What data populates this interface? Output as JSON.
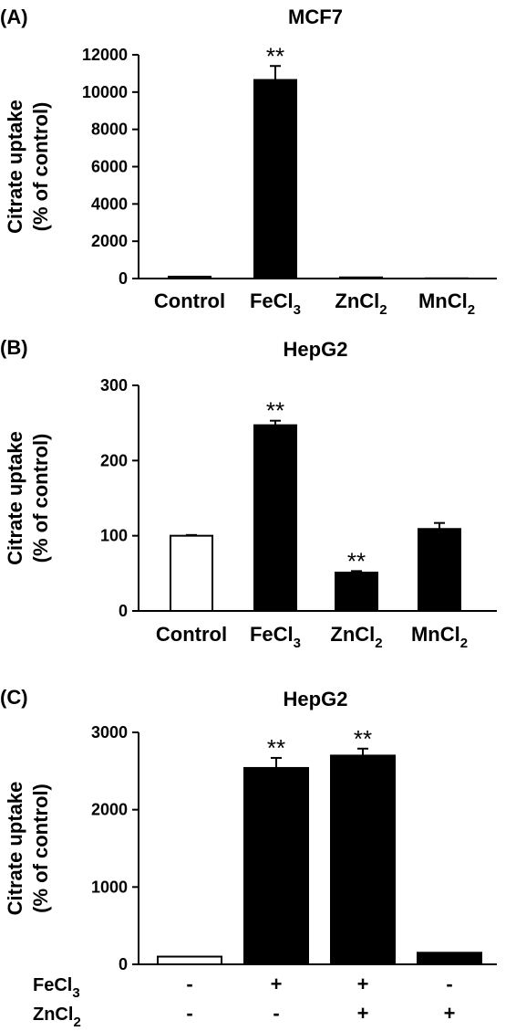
{
  "chart_data": [
    {
      "type": "bar",
      "panel_label": "(A)",
      "title": "MCF7",
      "ylabel": [
        "Citrate uptake",
        "(% of control)"
      ],
      "ylim": [
        0,
        12000
      ],
      "yticks": [
        0,
        2000,
        4000,
        6000,
        8000,
        10000,
        12000
      ],
      "categories": [
        {
          "base": "Control",
          "sub": ""
        },
        {
          "base": "FeCl",
          "sub": "3"
        },
        {
          "base": "ZnCl",
          "sub": "2"
        },
        {
          "base": "MnCl",
          "sub": "2"
        }
      ],
      "values": [
        100,
        10650,
        60,
        10
      ],
      "errors": [
        0,
        750,
        0,
        0
      ],
      "fills": [
        "#ffffff",
        "#000000",
        "#000000",
        "#000000"
      ],
      "significance": [
        "",
        "**",
        "",
        ""
      ],
      "grid": false
    },
    {
      "type": "bar",
      "panel_label": "(B)",
      "title": "HepG2",
      "ylabel": [
        "Citrate uptake",
        "(% of control)"
      ],
      "ylim": [
        0,
        300
      ],
      "yticks": [
        0,
        100,
        200,
        300
      ],
      "categories": [
        {
          "base": "Control",
          "sub": ""
        },
        {
          "base": "FeCl",
          "sub": "3"
        },
        {
          "base": "ZnCl",
          "sub": "2"
        },
        {
          "base": "MnCl",
          "sub": "2"
        }
      ],
      "values": [
        100,
        247,
        51,
        109
      ],
      "errors": [
        1,
        6,
        2,
        8
      ],
      "fills": [
        "#ffffff",
        "#000000",
        "#000000",
        "#000000"
      ],
      "significance": [
        "",
        "**",
        "**",
        ""
      ],
      "grid": false
    },
    {
      "type": "bar",
      "panel_label": "(C)",
      "title": "HepG2",
      "ylabel": [
        "Citrate uptake",
        "(% of control)"
      ],
      "ylim": [
        0,
        3000
      ],
      "yticks": [
        0,
        1000,
        2000,
        3000
      ],
      "values": [
        100,
        2540,
        2700,
        150
      ],
      "errors": [
        0,
        130,
        90,
        0
      ],
      "fills": [
        "#ffffff",
        "#000000",
        "#000000",
        "#000000"
      ],
      "significance": [
        "",
        "**",
        "**",
        ""
      ],
      "treatments": [
        {
          "base": "FeCl",
          "sub": "3",
          "signs": [
            "-",
            "+",
            "+",
            "-"
          ]
        },
        {
          "base": "ZnCl",
          "sub": "2",
          "signs": [
            "-",
            "-",
            "+",
            "+"
          ]
        }
      ],
      "grid": false
    }
  ]
}
